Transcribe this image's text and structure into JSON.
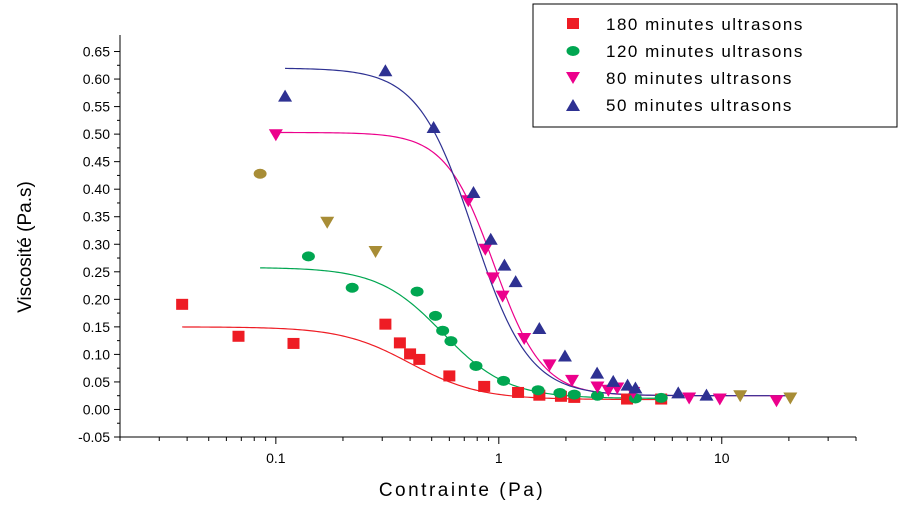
{
  "chart_data": {
    "type": "scatter",
    "title": "",
    "xlabel": "Contrainte (Pa)",
    "ylabel": "Viscosité (Pa.s)",
    "x_scale": "log",
    "xlim": [
      0.02,
      40
    ],
    "ylim": [
      -0.05,
      0.68
    ],
    "x_ticks": [
      0.1,
      1,
      10
    ],
    "x_tick_labels": [
      "0.1",
      "1",
      "10"
    ],
    "y_ticks": [
      -0.05,
      0.0,
      0.05,
      0.1,
      0.15,
      0.2,
      0.25,
      0.3,
      0.35,
      0.4,
      0.45,
      0.5,
      0.55,
      0.6,
      0.65
    ],
    "y_tick_labels": [
      "-0.05",
      "0.00",
      "0.05",
      "0.10",
      "0.15",
      "0.20",
      "0.25",
      "0.30",
      "0.35",
      "0.40",
      "0.45",
      "0.50",
      "0.55",
      "0.60",
      "0.65"
    ],
    "grid": false,
    "legend_position": "top-right",
    "series": [
      {
        "name": "180 minutes ultrasons",
        "color": "#ee1c24",
        "marker": "square",
        "points": [
          [
            0.038,
            0.19
          ],
          [
            0.068,
            0.132
          ],
          [
            0.12,
            0.119
          ],
          [
            0.31,
            0.154
          ],
          [
            0.36,
            0.12
          ],
          [
            0.4,
            0.1
          ],
          [
            0.44,
            0.09
          ],
          [
            0.6,
            0.06
          ],
          [
            0.86,
            0.041
          ],
          [
            1.22,
            0.03
          ],
          [
            1.52,
            0.025
          ],
          [
            1.9,
            0.023
          ],
          [
            2.18,
            0.021
          ],
          [
            3.76,
            0.018
          ],
          [
            5.35,
            0.018
          ]
        ],
        "fit": {
          "eta0": 0.15,
          "etaInf": 0.018,
          "c": 0.4,
          "m": 2.8,
          "xmin": 0.038,
          "xmax": 5.4
        }
      },
      {
        "name": "120 minutes ultrasons",
        "color": "#00a651",
        "marker": "circle",
        "points": [
          [
            0.14,
            0.278
          ],
          [
            0.22,
            0.221
          ],
          [
            0.43,
            0.214
          ],
          [
            0.52,
            0.17
          ],
          [
            0.56,
            0.143
          ],
          [
            0.61,
            0.124
          ],
          [
            0.79,
            0.079
          ],
          [
            1.05,
            0.052
          ],
          [
            1.5,
            0.035
          ],
          [
            1.88,
            0.03
          ],
          [
            2.18,
            0.027
          ],
          [
            2.77,
            0.025
          ],
          [
            4.1,
            0.02
          ],
          [
            5.35,
            0.021
          ]
        ],
        "fit": {
          "eta0": 0.258,
          "etaInf": 0.02,
          "c": 0.56,
          "m": 3.0,
          "xmin": 0.085,
          "xmax": 5.4
        }
      },
      {
        "name": "80 minutes ultrasons",
        "color": "#ec008c",
        "marker": "triangle-down",
        "points": [
          [
            0.1,
            0.498
          ],
          [
            0.73,
            0.378
          ],
          [
            0.87,
            0.29
          ],
          [
            0.94,
            0.238
          ],
          [
            1.04,
            0.205
          ],
          [
            1.3,
            0.128
          ],
          [
            1.69,
            0.08
          ],
          [
            2.13,
            0.052
          ],
          [
            2.77,
            0.04
          ],
          [
            3.1,
            0.034
          ],
          [
            3.4,
            0.038
          ],
          [
            4.01,
            0.03
          ],
          [
            7.14,
            0.02
          ],
          [
            9.8,
            0.018
          ],
          [
            17.6,
            0.015
          ]
        ],
        "fit": {
          "eta0": 0.503,
          "etaInf": 0.025,
          "c": 0.95,
          "m": 4.0,
          "xmin": 0.095,
          "xmax": 20
        }
      },
      {
        "name": "50 minutes ultrasons",
        "color": "#2e3192",
        "marker": "triangle-up",
        "points": [
          [
            0.11,
            0.57
          ],
          [
            0.31,
            0.616
          ],
          [
            0.51,
            0.513
          ],
          [
            0.77,
            0.395
          ],
          [
            0.92,
            0.31
          ],
          [
            1.06,
            0.263
          ],
          [
            1.19,
            0.233
          ],
          [
            1.52,
            0.148
          ],
          [
            1.98,
            0.098
          ],
          [
            2.76,
            0.067
          ],
          [
            3.26,
            0.052
          ],
          [
            3.78,
            0.045
          ],
          [
            4.1,
            0.04
          ],
          [
            6.38,
            0.031
          ],
          [
            8.54,
            0.027
          ]
        ],
        "fit": {
          "eta0": 0.62,
          "etaInf": 0.025,
          "c": 0.77,
          "m": 3.5,
          "xmin": 0.11,
          "xmax": 20
        }
      }
    ],
    "extra_points": [
      {
        "color": "#a88d36",
        "marker": "circle",
        "points": [
          [
            0.085,
            0.428
          ]
        ]
      },
      {
        "color": "#a88d36",
        "marker": "triangle-down",
        "points": [
          [
            0.17,
            0.339
          ],
          [
            0.28,
            0.286
          ],
          [
            12.1,
            0.024
          ],
          [
            20.3,
            0.02
          ]
        ]
      }
    ]
  }
}
